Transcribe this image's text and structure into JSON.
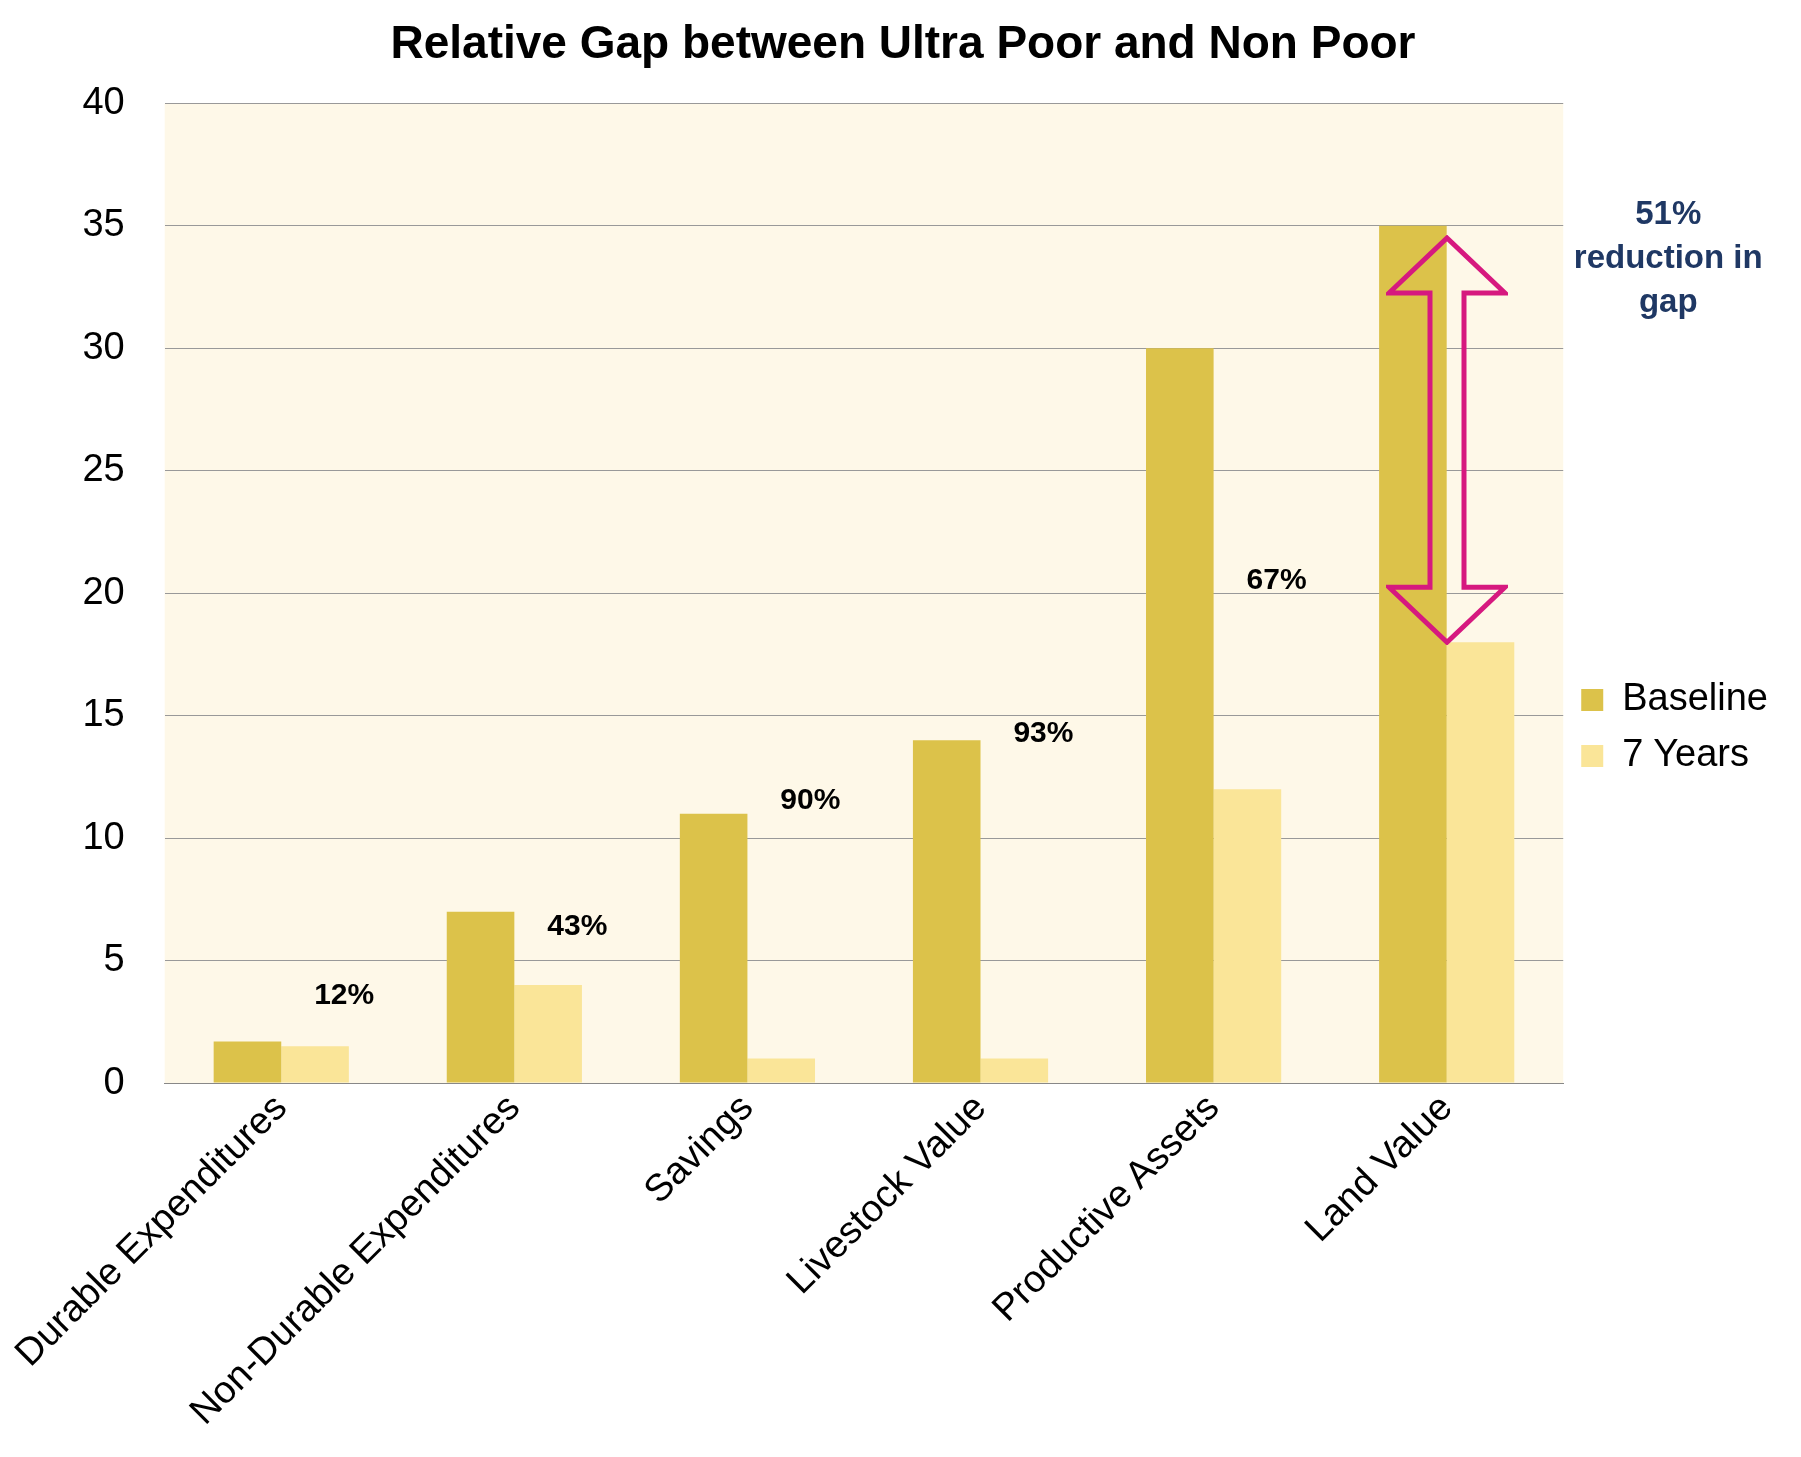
{
  "chart_data": {
    "type": "bar",
    "title": "Relative Gap between Ultra Poor and Non Poor",
    "categories": [
      "Durable Expenditures",
      "Non-Durable Expenditures",
      "Savings",
      "Livestock Value",
      "Productive Assets",
      "Land Value"
    ],
    "series": [
      {
        "name": "Baseline",
        "color": "#dcc24a",
        "values": [
          1.7,
          7,
          11,
          14,
          30,
          35
        ]
      },
      {
        "name": "7 Years",
        "color": "#fae598",
        "values": [
          1.5,
          4,
          1,
          1,
          12,
          18
        ]
      }
    ],
    "ylim": [
      0,
      40
    ],
    "yticks": [
      0,
      5,
      10,
      15,
      20,
      25,
      30,
      35,
      40
    ],
    "grid": "y",
    "legend": "right",
    "annotations": [
      "12%",
      "43%",
      "90%",
      "93%",
      "67%",
      "51% reduction in gap"
    ]
  }
}
